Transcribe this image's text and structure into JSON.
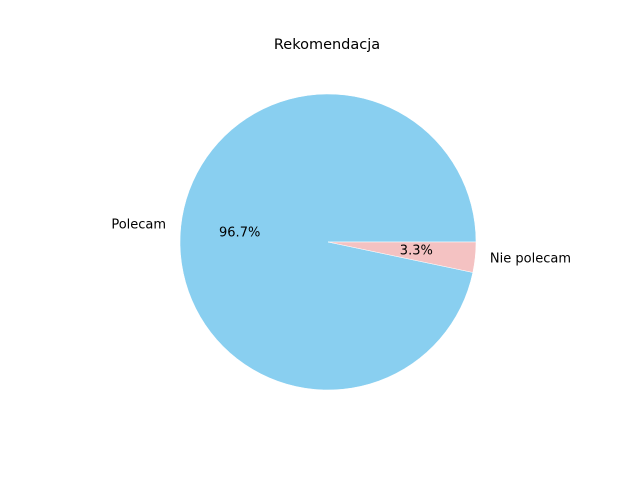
{
  "chart_data": {
    "type": "pie",
    "title": "Rekomendacja",
    "categories": [
      "Polecam",
      "Nie polecam"
    ],
    "values": [
      96.7,
      3.3
    ],
    "percent_labels": [
      "96.7%",
      "3.3%"
    ],
    "colors": [
      "#89CFF0",
      "#F4C2C2"
    ],
    "start_angle_deg": 0,
    "direction": "counterclockwise"
  }
}
